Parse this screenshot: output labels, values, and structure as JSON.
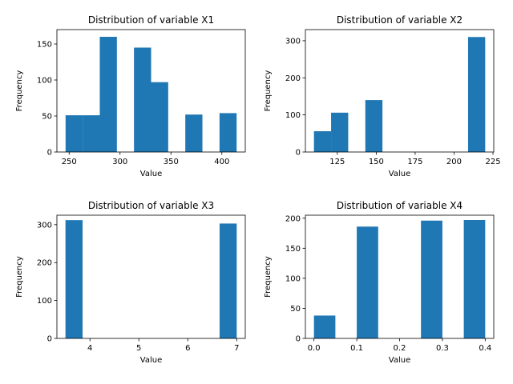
{
  "chart_data": [
    {
      "type": "bar",
      "title": "Distribution of variable X1",
      "xlabel": "Value",
      "ylabel": "Frequency",
      "xlim": [
        238,
        423
      ],
      "ylim": [
        0,
        170
      ],
      "xticks": [
        250,
        300,
        350,
        400
      ],
      "yticks": [
        0,
        50,
        100,
        150
      ],
      "bins": [
        {
          "x0": 246.5,
          "x1": 263.3,
          "value": 51
        },
        {
          "x0": 263.3,
          "x1": 280.1,
          "value": 51
        },
        {
          "x0": 280.1,
          "x1": 296.9,
          "value": 160
        },
        {
          "x0": 313.7,
          "x1": 330.5,
          "value": 145
        },
        {
          "x0": 330.5,
          "x1": 347.3,
          "value": 97
        },
        {
          "x0": 364.1,
          "x1": 380.9,
          "value": 52
        },
        {
          "x0": 397.7,
          "x1": 414.5,
          "value": 54
        }
      ]
    },
    {
      "type": "bar",
      "title": "Distribution of variable X2",
      "xlabel": "Value",
      "ylabel": "Frequency",
      "xlim": [
        104.5,
        225.5
      ],
      "ylim": [
        0,
        330
      ],
      "xticks": [
        125,
        150,
        175,
        200,
        225
      ],
      "yticks": [
        0,
        100,
        200,
        300
      ],
      "bins": [
        {
          "x0": 110,
          "x1": 121,
          "value": 56
        },
        {
          "x0": 121,
          "x1": 132,
          "value": 106
        },
        {
          "x0": 143,
          "x1": 154,
          "value": 140
        },
        {
          "x0": 209,
          "x1": 220,
          "value": 310
        }
      ]
    },
    {
      "type": "bar",
      "title": "Distribution of variable X3",
      "xlabel": "Value",
      "ylabel": "Frequency",
      "xlim": [
        3.325,
        7.175
      ],
      "ylim": [
        0,
        325
      ],
      "xticks": [
        4,
        5,
        6,
        7
      ],
      "yticks": [
        0,
        100,
        200,
        300
      ],
      "bins": [
        {
          "x0": 3.5,
          "x1": 3.85,
          "value": 312
        },
        {
          "x0": 6.65,
          "x1": 7.0,
          "value": 303
        }
      ]
    },
    {
      "type": "bar",
      "title": "Distribution of variable X4",
      "xlabel": "Value",
      "ylabel": "Frequency",
      "xlim": [
        -0.02,
        0.42
      ],
      "ylim": [
        0,
        205
      ],
      "xticks": [
        0.0,
        0.1,
        0.2,
        0.3,
        0.4
      ],
      "yticks": [
        0,
        50,
        100,
        150,
        200
      ],
      "bins": [
        {
          "x0": 0.0,
          "x1": 0.05,
          "value": 38
        },
        {
          "x0": 0.1,
          "x1": 0.15,
          "value": 186
        },
        {
          "x0": 0.25,
          "x1": 0.3,
          "value": 196
        },
        {
          "x0": 0.35,
          "x1": 0.4,
          "value": 197
        }
      ]
    }
  ]
}
